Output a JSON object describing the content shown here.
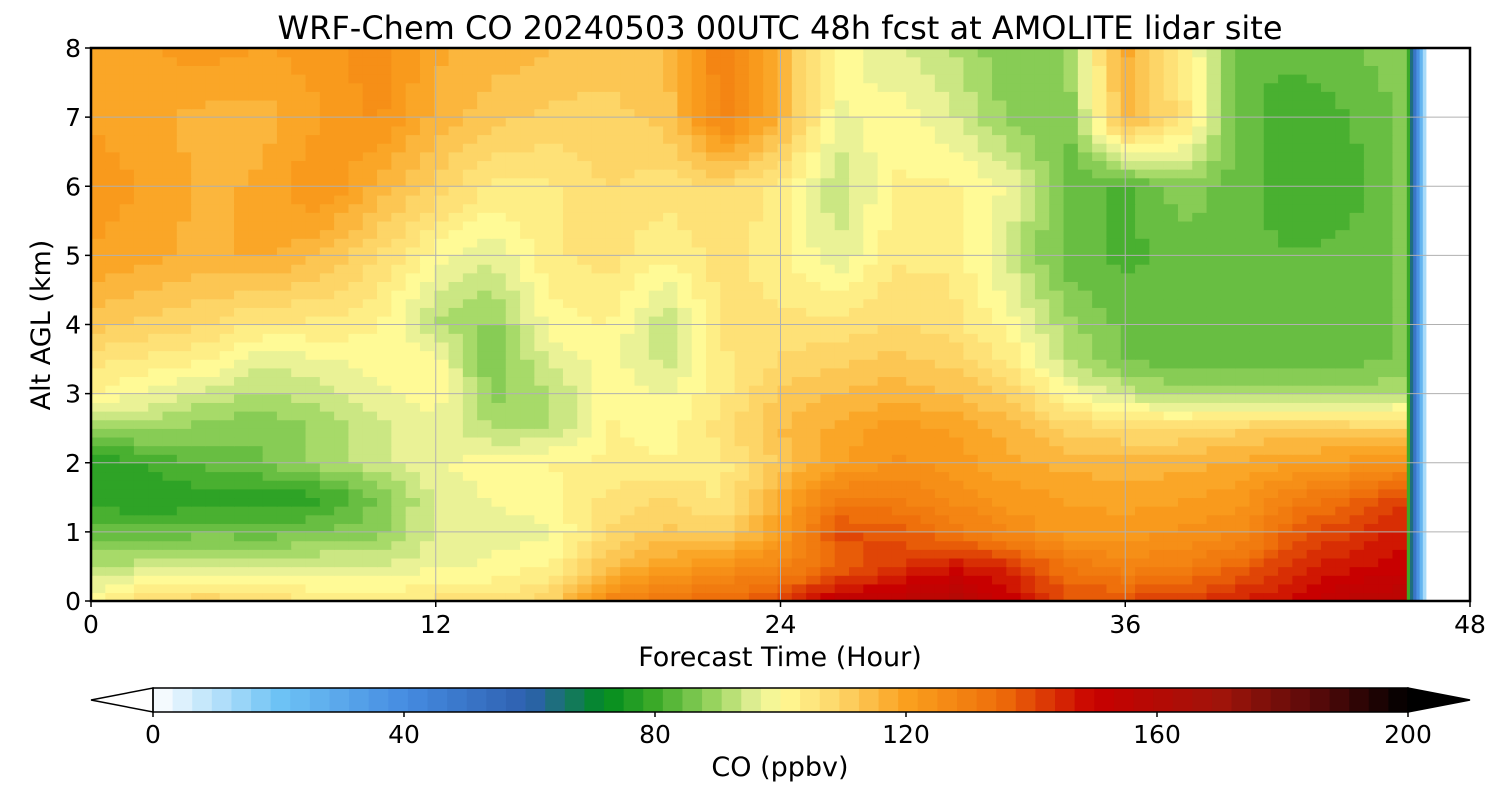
{
  "chart_data": {
    "type": "heatmap",
    "title": "WRF-Chem CO  20240503 00UTC 48h fcst at AMOLITE lidar site",
    "xlabel": "Forecast Time (Hour)",
    "ylabel": "Alt AGL (km)",
    "xlim": [
      0,
      48
    ],
    "ylim": [
      0,
      8
    ],
    "xticks": [
      0,
      12,
      24,
      36,
      48
    ],
    "yticks": [
      0,
      1,
      2,
      3,
      4,
      5,
      6,
      7,
      8
    ],
    "grid": true,
    "data_valid_until_hour": 45.8,
    "x": [
      0,
      2,
      4,
      6,
      8,
      10,
      12,
      14,
      16,
      18,
      20,
      22,
      24,
      26,
      28,
      30,
      32,
      34,
      36,
      38,
      40,
      42,
      44,
      45.5
    ],
    "y": [
      0,
      0.5,
      1,
      1.5,
      2,
      2.5,
      3,
      3.5,
      4,
      5,
      6,
      7,
      8
    ],
    "values": [
      [
        100,
        108,
        110,
        108,
        104,
        104,
        106,
        106,
        110,
        128,
        132,
        136,
        140,
        154,
        156,
        160,
        150,
        140,
        140,
        142,
        146,
        150,
        156,
        158
      ],
      [
        92,
        94,
        95,
        96,
        96,
        95,
        98,
        99,
        102,
        114,
        120,
        124,
        128,
        136,
        142,
        148,
        145,
        132,
        128,
        130,
        136,
        144,
        148,
        150
      ],
      [
        84,
        84,
        85,
        84,
        86,
        88,
        96,
        97,
        98,
        108,
        112,
        110,
        120,
        140,
        138,
        132,
        126,
        122,
        122,
        124,
        126,
        138,
        142,
        146
      ],
      [
        78,
        76,
        78,
        77,
        79,
        86,
        96,
        99,
        100,
        106,
        108,
        104,
        118,
        130,
        130,
        126,
        122,
        120,
        119,
        120,
        122,
        130,
        135,
        140
      ],
      [
        76,
        80,
        84,
        86,
        90,
        94,
        98,
        100,
        102,
        102,
        102,
        104,
        112,
        120,
        124,
        122,
        118,
        116,
        115,
        116,
        118,
        120,
        122,
        124
      ],
      [
        90,
        90,
        88,
        86,
        90,
        94,
        98,
        92,
        92,
        102,
        100,
        106,
        114,
        118,
        122,
        120,
        116,
        110,
        108,
        108,
        110,
        112,
        110,
        110
      ],
      [
        102,
        98,
        94,
        92,
        94,
        98,
        100,
        88,
        92,
        100,
        98,
        104,
        112,
        114,
        116,
        114,
        110,
        100,
        94,
        90,
        90,
        90,
        90,
        92
      ],
      [
        106,
        104,
        102,
        96,
        98,
        100,
        100,
        86,
        96,
        100,
        94,
        104,
        108,
        110,
        112,
        110,
        104,
        92,
        86,
        84,
        84,
        84,
        85,
        86
      ],
      [
        112,
        110,
        108,
        104,
        104,
        102,
        92,
        88,
        100,
        102,
        92,
        106,
        106,
        106,
        108,
        106,
        100,
        90,
        85,
        84,
        84,
        84,
        85,
        86
      ],
      [
        120,
        118,
        116,
        118,
        114,
        108,
        100,
        96,
        104,
        106,
        102,
        106,
        102,
        96,
        104,
        104,
        94,
        84,
        82,
        84,
        84,
        83,
        84,
        86
      ],
      [
        122,
        120,
        116,
        118,
        124,
        116,
        110,
        104,
        104,
        108,
        106,
        108,
        104,
        92,
        102,
        102,
        98,
        84,
        82,
        88,
        84,
        80,
        82,
        86
      ],
      [
        120,
        118,
        116,
        116,
        120,
        124,
        116,
        112,
        110,
        110,
        112,
        128,
        116,
        98,
        100,
        96,
        88,
        86,
        116,
        106,
        84,
        80,
        83,
        86
      ],
      [
        118,
        120,
        122,
        120,
        122,
        126,
        118,
        116,
        114,
        112,
        114,
        130,
        116,
        100,
        96,
        92,
        86,
        90,
        118,
        104,
        84,
        84,
        86,
        88
      ]
    ],
    "colorbar": {
      "label": "CO  (ppbv)",
      "min": 0,
      "max": 200,
      "ticks": [
        0,
        40,
        80,
        120,
        160,
        200
      ],
      "extend": "both"
    }
  }
}
